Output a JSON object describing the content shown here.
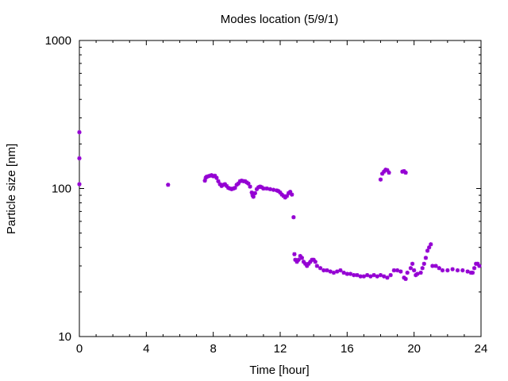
{
  "chart_data": {
    "type": "scatter",
    "title": "Modes location (5/9/1)",
    "xlabel": "Time [hour]",
    "ylabel": "Particle size [nm]",
    "xlim": [
      0,
      24
    ],
    "ylim": [
      10,
      1000
    ],
    "yscale": "log",
    "grid": false,
    "xticks": [
      0,
      4,
      8,
      12,
      16,
      20,
      24
    ],
    "xtick_labels": [
      "0",
      "4",
      "8",
      "12",
      "16",
      "20",
      "24"
    ],
    "yticks": [
      10,
      100,
      1000
    ],
    "ytick_labels": [
      "10",
      "100",
      "1000"
    ],
    "marker_color": "#9400d3",
    "series": [
      {
        "name": "",
        "points": [
          [
            0.0,
            240
          ],
          [
            0.0,
            160
          ],
          [
            0.0,
            107
          ],
          [
            5.3,
            106
          ],
          [
            7.5,
            113
          ],
          [
            7.55,
            118
          ],
          [
            7.6,
            120
          ],
          [
            7.7,
            121
          ],
          [
            7.8,
            122
          ],
          [
            7.9,
            123
          ],
          [
            8.0,
            121
          ],
          [
            8.1,
            122
          ],
          [
            8.2,
            118
          ],
          [
            8.3,
            112
          ],
          [
            8.4,
            107
          ],
          [
            8.5,
            104
          ],
          [
            8.6,
            106
          ],
          [
            8.7,
            107
          ],
          [
            8.8,
            104
          ],
          [
            8.9,
            101
          ],
          [
            9.0,
            100
          ],
          [
            9.1,
            99
          ],
          [
            9.2,
            100
          ],
          [
            9.3,
            101
          ],
          [
            9.4,
            106
          ],
          [
            9.5,
            108
          ],
          [
            9.6,
            112
          ],
          [
            9.7,
            113
          ],
          [
            9.8,
            112
          ],
          [
            9.9,
            112
          ],
          [
            10.0,
            110
          ],
          [
            10.1,
            108
          ],
          [
            10.2,
            103
          ],
          [
            10.3,
            94
          ],
          [
            10.35,
            90
          ],
          [
            10.4,
            88
          ],
          [
            10.5,
            93
          ],
          [
            10.6,
            99
          ],
          [
            10.7,
            102
          ],
          [
            10.8,
            103
          ],
          [
            10.9,
            102
          ],
          [
            11.0,
            100
          ],
          [
            11.2,
            100
          ],
          [
            11.4,
            99
          ],
          [
            11.6,
            98
          ],
          [
            11.8,
            97
          ],
          [
            11.9,
            96
          ],
          [
            12.0,
            94
          ],
          [
            12.1,
            91
          ],
          [
            12.2,
            89
          ],
          [
            12.3,
            87
          ],
          [
            12.4,
            89
          ],
          [
            12.5,
            93
          ],
          [
            12.6,
            95
          ],
          [
            12.7,
            91
          ],
          [
            12.8,
            64
          ],
          [
            12.85,
            36
          ],
          [
            12.9,
            33
          ],
          [
            13.0,
            32
          ],
          [
            13.1,
            33
          ],
          [
            13.2,
            35
          ],
          [
            13.3,
            34
          ],
          [
            13.4,
            32
          ],
          [
            13.5,
            31
          ],
          [
            13.6,
            30
          ],
          [
            13.7,
            31
          ],
          [
            13.8,
            32
          ],
          [
            13.9,
            33
          ],
          [
            14.0,
            33
          ],
          [
            14.1,
            32
          ],
          [
            14.2,
            30
          ],
          [
            14.4,
            29
          ],
          [
            14.6,
            28
          ],
          [
            14.8,
            28
          ],
          [
            15.0,
            27.5
          ],
          [
            15.2,
            27
          ],
          [
            15.4,
            27.5
          ],
          [
            15.6,
            28
          ],
          [
            15.8,
            27
          ],
          [
            16.0,
            26.5
          ],
          [
            16.2,
            26.5
          ],
          [
            16.4,
            26
          ],
          [
            16.6,
            26
          ],
          [
            16.8,
            25.5
          ],
          [
            17.0,
            25.5
          ],
          [
            17.2,
            26
          ],
          [
            17.4,
            25.5
          ],
          [
            17.6,
            26
          ],
          [
            17.8,
            25.5
          ],
          [
            18.0,
            26
          ],
          [
            18.2,
            25.5
          ],
          [
            18.4,
            25
          ],
          [
            18.6,
            26
          ],
          [
            18.8,
            28
          ],
          [
            19.0,
            28
          ],
          [
            19.2,
            27.5
          ],
          [
            19.4,
            25
          ],
          [
            19.5,
            24.5
          ],
          [
            19.6,
            27
          ],
          [
            19.8,
            29
          ],
          [
            19.9,
            31
          ],
          [
            20.0,
            28
          ],
          [
            20.1,
            26
          ],
          [
            20.2,
            26.5
          ],
          [
            20.4,
            27
          ],
          [
            20.5,
            29
          ],
          [
            20.6,
            31
          ],
          [
            20.7,
            34
          ],
          [
            20.8,
            38
          ],
          [
            20.9,
            40
          ],
          [
            21.0,
            42
          ],
          [
            21.1,
            30
          ],
          [
            21.3,
            30
          ],
          [
            21.5,
            29
          ],
          [
            21.7,
            28
          ],
          [
            22.0,
            28
          ],
          [
            22.3,
            28.5
          ],
          [
            22.6,
            28
          ],
          [
            22.9,
            28
          ],
          [
            23.2,
            27.5
          ],
          [
            23.4,
            27
          ],
          [
            23.5,
            27
          ],
          [
            23.6,
            29
          ],
          [
            23.7,
            31
          ],
          [
            23.8,
            31
          ],
          [
            23.9,
            30
          ],
          [
            18.0,
            115
          ],
          [
            18.1,
            126
          ],
          [
            18.2,
            130
          ],
          [
            18.3,
            134
          ],
          [
            18.4,
            133
          ],
          [
            18.5,
            128
          ],
          [
            19.3,
            130
          ],
          [
            19.4,
            131
          ],
          [
            19.5,
            128
          ]
        ]
      }
    ]
  }
}
